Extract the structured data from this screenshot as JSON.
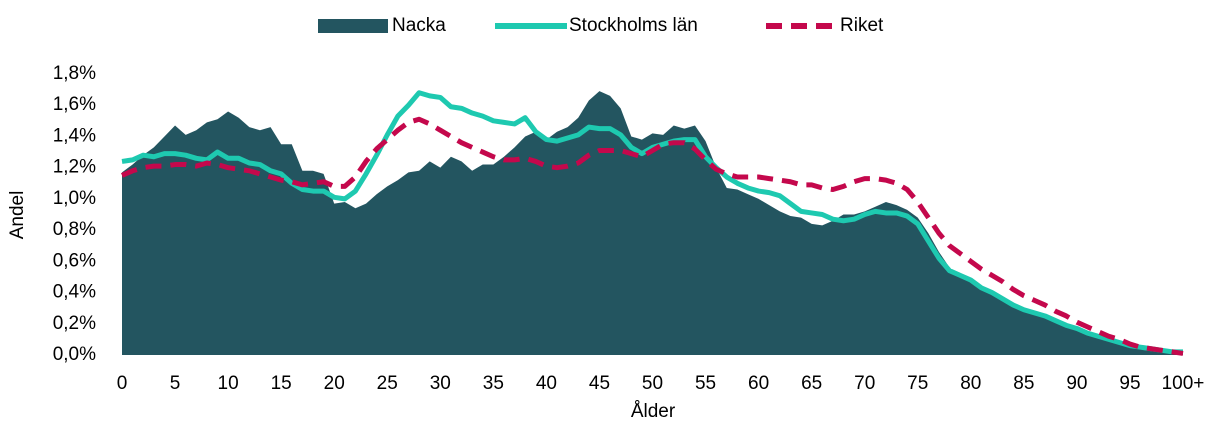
{
  "chart_data": {
    "type": "area",
    "x_label": "Ålder",
    "y_label": "Andel",
    "categories": [
      "0",
      null,
      null,
      null,
      null,
      "5",
      null,
      null,
      null,
      null,
      "10",
      null,
      null,
      null,
      null,
      "15",
      null,
      null,
      null,
      null,
      "20",
      null,
      null,
      null,
      null,
      "25",
      null,
      null,
      null,
      null,
      "30",
      null,
      null,
      null,
      null,
      "35",
      null,
      null,
      null,
      null,
      "40",
      null,
      null,
      null,
      null,
      "45",
      null,
      null,
      null,
      null,
      "50",
      null,
      null,
      null,
      null,
      "55",
      null,
      null,
      null,
      null,
      "60",
      null,
      null,
      null,
      null,
      "65",
      null,
      null,
      null,
      null,
      "70",
      null,
      null,
      null,
      null,
      "75",
      null,
      null,
      null,
      null,
      "80",
      null,
      null,
      null,
      null,
      "85",
      null,
      null,
      null,
      null,
      "90",
      null,
      null,
      null,
      null,
      "95",
      null,
      null,
      null,
      null,
      "100+"
    ],
    "ylim": [
      0,
      1.8
    ],
    "yticks": [
      {
        "value": 0,
        "label": "0,0%"
      },
      {
        "value": 0.2,
        "label": "0,2%"
      },
      {
        "value": 0.4,
        "label": "0,4%"
      },
      {
        "value": 0.6,
        "label": "0,6%"
      },
      {
        "value": 0.8,
        "label": "0,8%"
      },
      {
        "value": 1.0,
        "label": "1,0%"
      },
      {
        "value": 1.2,
        "label": "1,2%"
      },
      {
        "value": 1.4,
        "label": "1,4%"
      },
      {
        "value": 1.6,
        "label": "1,6%"
      },
      {
        "value": 1.8,
        "label": "1,8%"
      }
    ],
    "grid": false,
    "legend": "top",
    "series": [
      {
        "name": "Nacka",
        "color": "#235560",
        "style": "area",
        "values": [
          1.17,
          1.22,
          1.28,
          1.33,
          1.4,
          1.47,
          1.41,
          1.44,
          1.49,
          1.51,
          1.56,
          1.52,
          1.46,
          1.44,
          1.46,
          1.35,
          1.35,
          1.18,
          1.18,
          1.16,
          0.97,
          0.98,
          0.94,
          0.97,
          1.03,
          1.08,
          1.12,
          1.17,
          1.18,
          1.24,
          1.2,
          1.27,
          1.24,
          1.18,
          1.22,
          1.22,
          1.27,
          1.33,
          1.4,
          1.43,
          1.38,
          1.43,
          1.46,
          1.52,
          1.63,
          1.69,
          1.66,
          1.58,
          1.4,
          1.38,
          1.42,
          1.41,
          1.47,
          1.45,
          1.47,
          1.37,
          1.2,
          1.07,
          1.06,
          1.03,
          1.0,
          0.96,
          0.92,
          0.89,
          0.88,
          0.84,
          0.83,
          0.86,
          0.9,
          0.9,
          0.92,
          0.95,
          0.98,
          0.96,
          0.93,
          0.88,
          0.78,
          0.66,
          0.56,
          0.5,
          0.48,
          0.44,
          0.4,
          0.36,
          0.32,
          0.28,
          0.27,
          0.25,
          0.22,
          0.19,
          0.16,
          0.14,
          0.11,
          0.09,
          0.07,
          0.05,
          0.04,
          0.03,
          0.02,
          0.01,
          0.01
        ]
      },
      {
        "name": "Stockholms län",
        "color": "#1ec9b0",
        "style": "line",
        "values": [
          1.24,
          1.25,
          1.28,
          1.27,
          1.29,
          1.29,
          1.28,
          1.26,
          1.25,
          1.3,
          1.26,
          1.26,
          1.23,
          1.22,
          1.18,
          1.16,
          1.1,
          1.06,
          1.05,
          1.05,
          1.01,
          1.0,
          1.05,
          1.16,
          1.28,
          1.41,
          1.53,
          1.6,
          1.68,
          1.66,
          1.65,
          1.59,
          1.58,
          1.55,
          1.53,
          1.5,
          1.49,
          1.48,
          1.52,
          1.43,
          1.38,
          1.37,
          1.39,
          1.41,
          1.46,
          1.45,
          1.45,
          1.41,
          1.33,
          1.29,
          1.33,
          1.35,
          1.37,
          1.38,
          1.38,
          1.27,
          1.2,
          1.14,
          1.1,
          1.07,
          1.05,
          1.04,
          1.02,
          0.97,
          0.92,
          0.91,
          0.9,
          0.87,
          0.86,
          0.87,
          0.9,
          0.92,
          0.91,
          0.91,
          0.89,
          0.84,
          0.73,
          0.62,
          0.54,
          0.51,
          0.48,
          0.43,
          0.4,
          0.36,
          0.32,
          0.29,
          0.27,
          0.25,
          0.22,
          0.19,
          0.17,
          0.14,
          0.12,
          0.1,
          0.08,
          0.06,
          0.05,
          0.04,
          0.03,
          0.02,
          0.02
        ]
      },
      {
        "name": "Riket",
        "color": "#c4084c",
        "style": "dashed",
        "values": [
          1.15,
          1.18,
          1.2,
          1.21,
          1.21,
          1.22,
          1.22,
          1.21,
          1.23,
          1.22,
          1.2,
          1.19,
          1.18,
          1.16,
          1.14,
          1.12,
          1.11,
          1.09,
          1.1,
          1.11,
          1.08,
          1.08,
          1.14,
          1.24,
          1.32,
          1.38,
          1.44,
          1.49,
          1.51,
          1.48,
          1.44,
          1.4,
          1.36,
          1.33,
          1.3,
          1.27,
          1.25,
          1.25,
          1.26,
          1.24,
          1.21,
          1.2,
          1.21,
          1.23,
          1.28,
          1.31,
          1.31,
          1.31,
          1.29,
          1.27,
          1.31,
          1.35,
          1.36,
          1.36,
          1.32,
          1.25,
          1.19,
          1.16,
          1.14,
          1.14,
          1.14,
          1.13,
          1.12,
          1.11,
          1.09,
          1.09,
          1.07,
          1.06,
          1.08,
          1.11,
          1.13,
          1.13,
          1.12,
          1.1,
          1.06,
          0.98,
          0.88,
          0.78,
          0.7,
          0.65,
          0.6,
          0.55,
          0.51,
          0.47,
          0.42,
          0.38,
          0.35,
          0.32,
          0.28,
          0.25,
          0.21,
          0.18,
          0.15,
          0.12,
          0.1,
          0.07,
          0.05,
          0.04,
          0.03,
          0.02,
          0.01
        ]
      }
    ]
  }
}
